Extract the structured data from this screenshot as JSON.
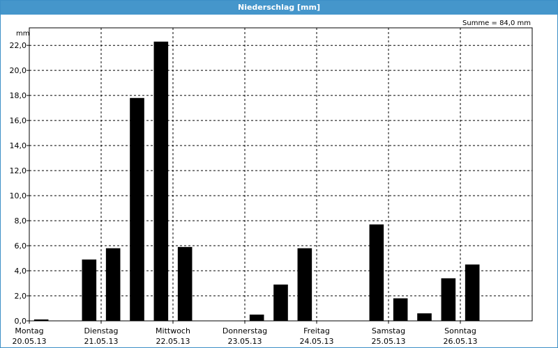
{
  "window": {
    "title": "Niederschlag [mm]"
  },
  "summary": "Summe = 84,0 mm",
  "chart_data": {
    "type": "bar",
    "unit_label": "mm",
    "ylim": [
      0,
      23.4
    ],
    "y_ticks": [
      "0,0",
      "2,0",
      "4,0",
      "6,0",
      "8,0",
      "10,0",
      "12,0",
      "14,0",
      "16,0",
      "18,0",
      "20,0",
      "22,0"
    ],
    "y_tick_values": [
      0,
      2,
      4,
      6,
      8,
      10,
      12,
      14,
      16,
      18,
      20,
      22
    ],
    "days": [
      {
        "name": "Montag",
        "date": "20.05.13"
      },
      {
        "name": "Dienstag",
        "date": "21.05.13"
      },
      {
        "name": "Mittwoch",
        "date": "22.05.13"
      },
      {
        "name": "Donnerstag",
        "date": "23.05.13"
      },
      {
        "name": "Freitag",
        "date": "24.05.13"
      },
      {
        "name": "Samstag",
        "date": "25.05.13"
      },
      {
        "name": "Sonntag",
        "date": "26.05.13"
      }
    ],
    "bars_per_day": 3,
    "values": [
      0.1,
      0,
      4.9,
      5.8,
      17.8,
      22.3,
      5.9,
      0,
      0,
      0.5,
      2.9,
      5.8,
      0,
      0,
      7.7,
      1.8,
      0.6,
      3.4,
      4.5
    ],
    "grid": true,
    "bar_color": "#000000",
    "grid_color": "#000000"
  }
}
